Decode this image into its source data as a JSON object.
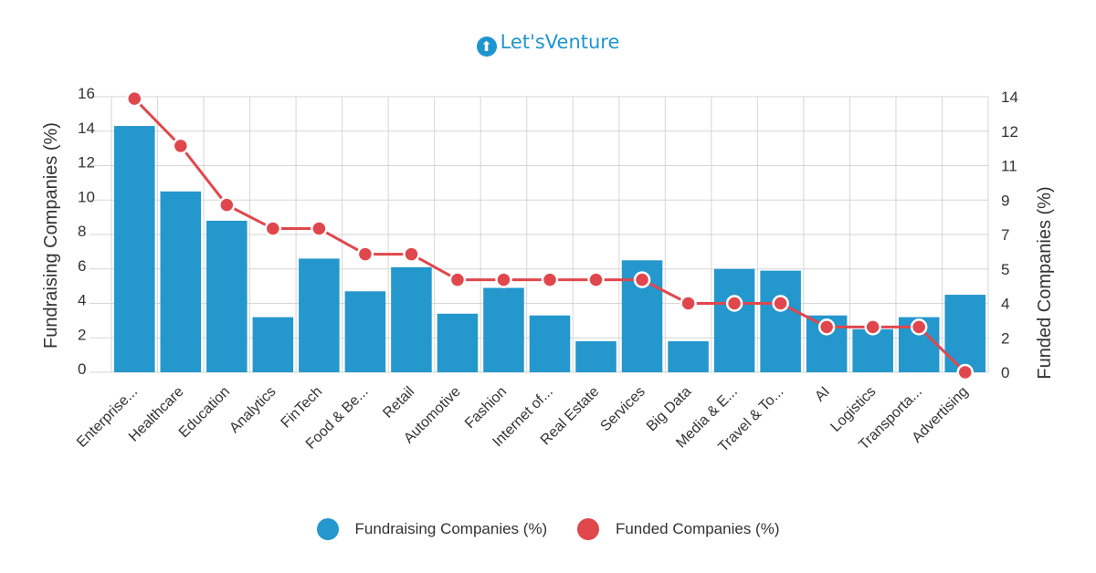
{
  "logo": {
    "mark": "⬆",
    "text": "Let'sVenture",
    "icon": "up-arrow-circle-icon"
  },
  "colors": {
    "bar": "#2497cd",
    "line": "#e0474c",
    "grid": "#d6d6d6"
  },
  "legend": [
    {
      "label": "Fundraising Companies (%)",
      "color": "#2497cd"
    },
    {
      "label": "Funded Companies (%)",
      "color": "#e0474c"
    }
  ],
  "chart_data": {
    "type": "bar",
    "categories": [
      "Enterprise...",
      "Healthcare",
      "Education",
      "Analytics",
      "FinTech",
      "Food & Be...",
      "Retail",
      "Automotive",
      "Fashion",
      "Internet of...",
      "Real Estate",
      "Services",
      "Big Data",
      "Media & E...",
      "Travel & To...",
      "AI",
      "Logistics",
      "Transporta...",
      "Advertising"
    ],
    "series": [
      {
        "name": "Fundraising Companies (%)",
        "type": "bar",
        "axis": "left",
        "values": [
          14.3,
          10.5,
          8.8,
          3.2,
          6.6,
          4.7,
          6.1,
          3.4,
          4.9,
          3.3,
          1.8,
          6.5,
          1.8,
          6.0,
          5.9,
          3.3,
          2.5,
          3.2,
          4.5
        ]
      },
      {
        "name": "Funded Companies (%)",
        "type": "line",
        "axis": "right",
        "values": [
          13.9,
          11.5,
          8.5,
          7.3,
          7.3,
          6.0,
          6.0,
          4.7,
          4.7,
          4.7,
          4.7,
          4.7,
          3.5,
          3.5,
          3.5,
          2.3,
          2.3,
          2.3,
          0.0
        ]
      }
    ],
    "ylabel": "Fundraising Companies (%)",
    "y2label": "Funded Companies (%)",
    "left_ticks": [
      "16",
      "14",
      "12",
      "10",
      "8",
      "6",
      "4",
      "2",
      "0"
    ],
    "right_ticks": [
      "14",
      "12",
      "11",
      "9",
      "7",
      "5",
      "4",
      "2",
      "0"
    ],
    "ylim": [
      0,
      16
    ],
    "y2lim": [
      0,
      14
    ],
    "grid": true,
    "legend_position": "bottom"
  }
}
